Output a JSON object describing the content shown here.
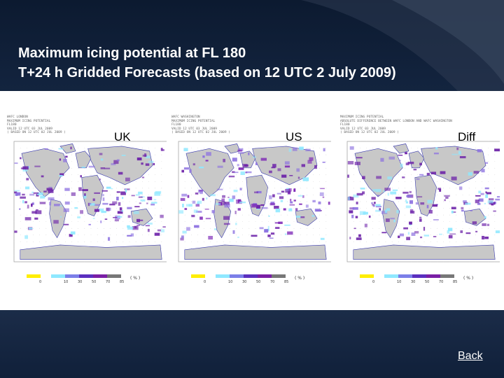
{
  "title": {
    "line1": "Maximum icing potential at FL 180",
    "line2": "T+24 h Gridded Forecasts (based on 12 UTC 2 July 2009)"
  },
  "maps": [
    {
      "label": "UK",
      "meta": [
        "WAFC LONDON",
        "MAXIMUM ICING POTENTIAL",
        "FL180",
        "VALID 12 UTC 03 JUL 2009",
        "( BASED ON 12 UTC 02 JUL 2009 )"
      ],
      "accent": "#6b1fa8"
    },
    {
      "label": "US",
      "meta": [
        "WAFC WASHINGTON",
        "MAXIMUM ICING POTENTIAL",
        "FL180",
        "VALID 12 UTC 03 JUL 2009",
        "( BASED ON 12 UTC 02 JUL 2009 )"
      ],
      "accent": "#7a22b5"
    },
    {
      "label": "Diff",
      "meta": [
        "MAXIMUM ICING POTENTIAL",
        "ABSOLUTE DIFFERENCE BETWEEN WAFC LONDON AND WAFC WASHINGTON",
        "FL180",
        "VALID 12 UTC 03 JUL 2009",
        "( BASED ON 12 UTC 02 JUL 2009 )"
      ],
      "accent": "#6a1fa6"
    }
  ],
  "legend": {
    "ticks": [
      "0",
      "10",
      "30",
      "50",
      "70",
      "85"
    ],
    "unit": "( % )",
    "colors": [
      "#ffee00",
      "#8fe8ff",
      "#7b7fe8",
      "#5b2fbf",
      "#7a1fa5",
      "#777777"
    ]
  },
  "colors": {
    "land": "#c8c8c8",
    "coast": "#3b3bb0",
    "cyan": "#8fe8ff",
    "purple_light": "#8b6fe0",
    "purple_dark": "#6b1fa8"
  },
  "nav": {
    "back_label": "Back"
  }
}
